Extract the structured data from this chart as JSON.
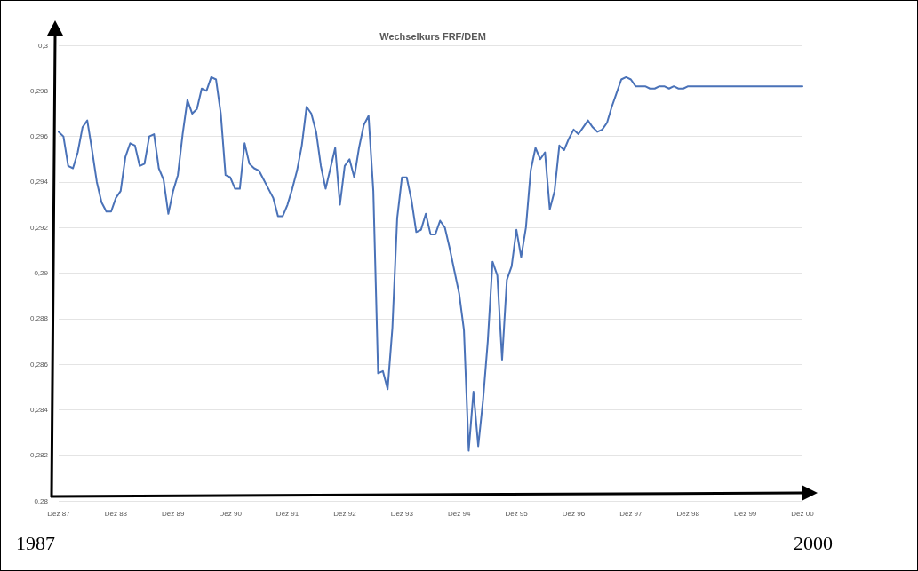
{
  "chart_data": {
    "type": "line",
    "title": "Wechselkurs FRF/DEM",
    "categories": [
      "Dez 87",
      null,
      null,
      null,
      null,
      null,
      null,
      null,
      null,
      null,
      null,
      null,
      "Dez 88",
      null,
      null,
      null,
      null,
      null,
      null,
      null,
      null,
      null,
      null,
      null,
      "Dez 89",
      null,
      null,
      null,
      null,
      null,
      null,
      null,
      null,
      null,
      null,
      null,
      "Dez 90",
      null,
      null,
      null,
      null,
      null,
      null,
      null,
      null,
      null,
      null,
      null,
      "Dez 91",
      null,
      null,
      null,
      null,
      null,
      null,
      null,
      null,
      null,
      null,
      null,
      "Dez 92",
      null,
      null,
      null,
      null,
      null,
      null,
      null,
      null,
      null,
      null,
      null,
      "Dez 93",
      null,
      null,
      null,
      null,
      null,
      null,
      null,
      null,
      null,
      null,
      null,
      "Dez 94",
      null,
      null,
      null,
      null,
      null,
      null,
      null,
      null,
      null,
      null,
      null,
      "Dez 95",
      null,
      null,
      null,
      null,
      null,
      null,
      null,
      null,
      null,
      null,
      null,
      "Dez 96",
      null,
      null,
      null,
      null,
      null,
      null,
      null,
      null,
      null,
      null,
      null,
      "Dez 97",
      null,
      null,
      null,
      null,
      null,
      null,
      null,
      null,
      null,
      null,
      null,
      "Dez 98",
      null,
      null,
      null,
      null,
      null,
      null,
      null,
      null,
      null,
      null,
      null,
      "Dez 99",
      null,
      null,
      null,
      null,
      null,
      null,
      null,
      null,
      null,
      null,
      null,
      "Dez 00"
    ],
    "series": [
      {
        "color": "#4a72b8",
        "values": [
          0.2962,
          0.296,
          0.2947,
          0.2946,
          0.2953,
          0.2964,
          0.2967,
          0.2954,
          0.294,
          0.2931,
          0.2927,
          0.2927,
          0.2933,
          0.2936,
          0.2951,
          0.2957,
          0.2956,
          0.2947,
          0.2948,
          0.296,
          0.2961,
          0.2946,
          0.2941,
          0.2926,
          0.2936,
          0.2943,
          0.2961,
          0.2976,
          0.297,
          0.2972,
          0.2981,
          0.298,
          0.2986,
          0.2985,
          0.297,
          0.2943,
          0.2942,
          0.2937,
          0.2937,
          0.2957,
          0.2948,
          0.2946,
          0.2945,
          0.2941,
          0.2937,
          0.2933,
          0.2925,
          0.2925,
          0.293,
          0.2937,
          0.2945,
          0.2956,
          0.2973,
          0.297,
          0.2962,
          0.2947,
          0.2937,
          0.2946,
          0.2955,
          0.293,
          0.2947,
          0.295,
          0.2942,
          0.2955,
          0.2965,
          0.2969,
          0.2936,
          0.2856,
          0.2857,
          0.2849,
          0.2876,
          0.2924,
          0.2942,
          0.2942,
          0.2932,
          0.2918,
          0.2919,
          0.2926,
          0.2917,
          0.2917,
          0.2923,
          0.292,
          0.2911,
          0.2901,
          0.2891,
          0.2875,
          0.2822,
          0.2848,
          0.2824,
          0.2844,
          0.287,
          0.2905,
          0.2899,
          0.2862,
          0.2897,
          0.2903,
          0.2919,
          0.2907,
          0.292,
          0.2945,
          0.2955,
          0.295,
          0.2953,
          0.2928,
          0.2936,
          0.2956,
          0.2954,
          0.2959,
          0.2963,
          0.2961,
          0.2964,
          0.2967,
          0.2964,
          0.2962,
          0.2963,
          0.2966,
          0.2973,
          0.2979,
          0.2985,
          0.2986,
          0.2985,
          0.2982,
          0.2982,
          0.2982,
          0.2981,
          0.2981,
          0.2982,
          0.2982,
          0.2981,
          0.2982,
          0.2981,
          0.2981,
          0.2982,
          0.2982,
          0.2982,
          0.2982,
          0.2982,
          0.2982,
          0.2982,
          0.2982,
          0.2982,
          0.2982,
          0.2982,
          0.2982,
          0.2982,
          0.2982,
          0.2982,
          0.2982,
          0.2982,
          0.2982,
          0.2982,
          0.2982,
          0.2982,
          0.2982,
          0.2982,
          0.2982,
          0.2982
        ]
      }
    ],
    "ylim": [
      0.28,
      0.3
    ],
    "yticks": [
      {
        "value": 0.28,
        "label": "0,28"
      },
      {
        "value": 0.282,
        "label": "0,282"
      },
      {
        "value": 0.284,
        "label": "0,284"
      },
      {
        "value": 0.286,
        "label": "0,286"
      },
      {
        "value": 0.288,
        "label": "0,288"
      },
      {
        "value": 0.29,
        "label": "0,29"
      },
      {
        "value": 0.292,
        "label": "0,292"
      },
      {
        "value": 0.294,
        "label": "0,294"
      },
      {
        "value": 0.296,
        "label": "0,296"
      },
      {
        "value": 0.298,
        "label": "0,298"
      },
      {
        "value": 0.3,
        "label": "0,3"
      }
    ],
    "grid": "y",
    "marker": "none",
    "line_style": "solid",
    "annotations": [
      "1987",
      "2000"
    ]
  }
}
